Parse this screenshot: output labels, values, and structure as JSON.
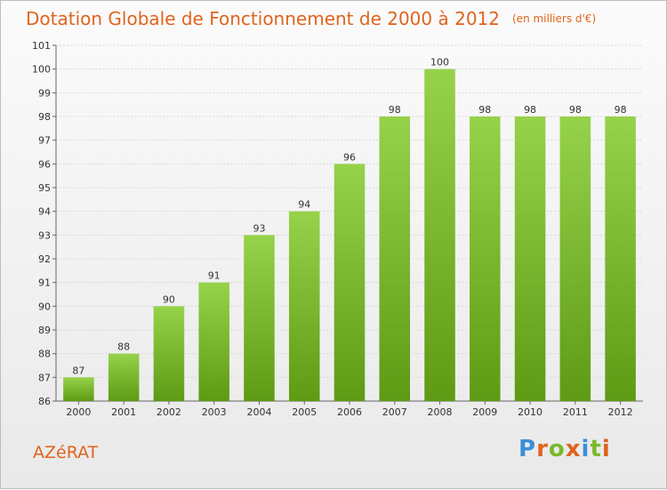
{
  "header": {
    "title": "Dotation Globale de Fonctionnement de 2000 à 2012",
    "subtitle": "(en milliers d'€)"
  },
  "footer": {
    "location": "AZéRAT",
    "logo": "Proxiti"
  },
  "colors": {
    "title": "#e0641e",
    "bar_top": "#96d24a",
    "bar_bottom": "#5e9a14",
    "grid": "#d8d8d8"
  },
  "chart_data": {
    "type": "bar",
    "title": "Dotation Globale de Fonctionnement de 2000 à 2012",
    "subtitle": "(en milliers d'€)",
    "xlabel": "",
    "ylabel": "",
    "categories": [
      "2000",
      "2001",
      "2002",
      "2003",
      "2004",
      "2005",
      "2006",
      "2007",
      "2008",
      "2009",
      "2010",
      "2011",
      "2012"
    ],
    "values": [
      87,
      88,
      90,
      91,
      93,
      94,
      96,
      98,
      100,
      98,
      98,
      98,
      98
    ],
    "ylim": [
      86,
      101
    ],
    "yticks": [
      "86",
      "87",
      "88",
      "89",
      "90",
      "91",
      "92",
      "93",
      "94",
      "95",
      "96",
      "97",
      "98",
      "99",
      "100",
      "101"
    ],
    "grid": true,
    "data_labels": true
  }
}
